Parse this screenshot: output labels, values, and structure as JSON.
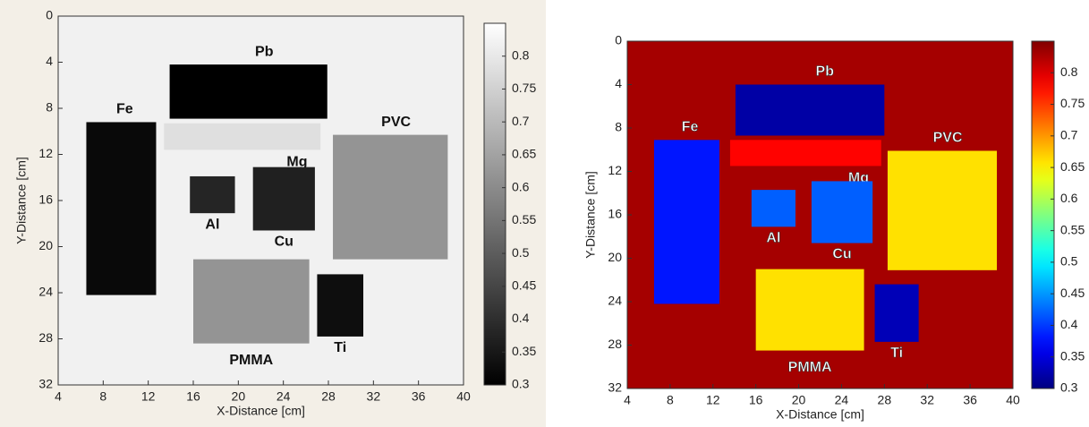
{
  "chart_data": [
    {
      "type": "heatmap",
      "colormap": "gray",
      "background_value": 0.82,
      "xlabel": "X-Distance [cm]",
      "ylabel": "Y-Distance [cm]",
      "xlim": [
        4,
        40
      ],
      "ylim": [
        32,
        0
      ],
      "xticks": [
        4,
        8,
        12,
        16,
        20,
        24,
        28,
        32,
        36,
        40
      ],
      "yticks": [
        0,
        4,
        8,
        12,
        16,
        20,
        24,
        28,
        32
      ],
      "clim": [
        0.3,
        0.85
      ],
      "cticks": [
        0.3,
        0.35,
        0.4,
        0.45,
        0.5,
        0.55,
        0.6,
        0.65,
        0.7,
        0.75,
        0.8
      ],
      "regions": [
        {
          "label": "Pb",
          "x": [
            13.9,
            27.9
          ],
          "y": [
            4.2,
            8.9
          ],
          "value": 0.3
        },
        {
          "label": "Mg",
          "x": [
            13.4,
            27.3
          ],
          "y": [
            9.3,
            11.6
          ],
          "value": 0.78
        },
        {
          "label": "Fe",
          "x": [
            6.5,
            12.7
          ],
          "y": [
            9.2,
            24.2
          ],
          "value": 0.32
        },
        {
          "label": "PVC",
          "x": [
            28.4,
            38.6
          ],
          "y": [
            10.3,
            21.1
          ],
          "value": 0.62
        },
        {
          "label": "Al",
          "x": [
            15.7,
            19.7
          ],
          "y": [
            13.9,
            17.1
          ],
          "value": 0.38
        },
        {
          "label": "Cu",
          "x": [
            21.3,
            26.8
          ],
          "y": [
            13.1,
            18.6
          ],
          "value": 0.37
        },
        {
          "label": "PMMA",
          "x": [
            16.0,
            26.3
          ],
          "y": [
            21.1,
            28.4
          ],
          "value": 0.62
        },
        {
          "label": "Ti",
          "x": [
            27.0,
            31.1
          ],
          "y": [
            22.4,
            27.8
          ],
          "value": 0.33
        }
      ]
    },
    {
      "type": "heatmap",
      "colormap": "jet",
      "background_value": 0.83,
      "xlabel": "X-Distance [cm]",
      "ylabel": "Y-Distance [cm]",
      "xlim": [
        4,
        40
      ],
      "ylim": [
        32,
        0
      ],
      "xticks": [
        4,
        8,
        12,
        16,
        20,
        24,
        28,
        32,
        36,
        40
      ],
      "yticks": [
        0,
        4,
        8,
        12,
        16,
        20,
        24,
        28,
        32
      ],
      "clim": [
        0.3,
        0.85
      ],
      "cticks": [
        0.3,
        0.35,
        0.4,
        0.45,
        0.5,
        0.55,
        0.6,
        0.65,
        0.7,
        0.75,
        0.8
      ],
      "regions": [
        {
          "label": "Pb",
          "x": [
            14.1,
            28.0
          ],
          "y": [
            4.0,
            8.7
          ],
          "value": 0.32
        },
        {
          "label": "Mg",
          "x": [
            13.6,
            27.7
          ],
          "y": [
            9.1,
            11.5
          ],
          "value": 0.78
        },
        {
          "label": "Fe",
          "x": [
            6.5,
            12.6
          ],
          "y": [
            9.1,
            24.2
          ],
          "value": 0.38
        },
        {
          "label": "PVC",
          "x": [
            28.3,
            38.5
          ],
          "y": [
            10.1,
            21.1
          ],
          "value": 0.66
        },
        {
          "label": "Al",
          "x": [
            15.6,
            19.7
          ],
          "y": [
            13.7,
            17.1
          ],
          "value": 0.42
        },
        {
          "label": "Cu",
          "x": [
            21.2,
            26.9
          ],
          "y": [
            12.9,
            18.6
          ],
          "value": 0.42
        },
        {
          "label": "PMMA",
          "x": [
            16.0,
            26.1
          ],
          "y": [
            21.0,
            28.5
          ],
          "value": 0.66
        },
        {
          "label": "Ti",
          "x": [
            27.1,
            31.2
          ],
          "y": [
            22.4,
            27.7
          ],
          "value": 0.33
        }
      ]
    }
  ]
}
